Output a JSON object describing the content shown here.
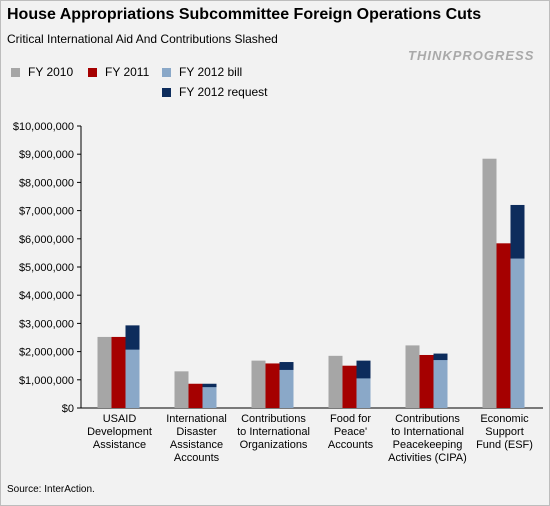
{
  "header": {
    "title": "House Appropriations Subcommittee Foreign Operations Cuts",
    "subtitle": "Critical International Aid And Contributions Slashed",
    "brand": "THINKPROGRESS"
  },
  "footer": {
    "source": "Source: InterAction."
  },
  "colors": {
    "fy2010": "#a6a6a6",
    "fy2011": "#a50000",
    "fy2012bill": "#8aa8c8",
    "fy2012request": "#0d2c5c"
  },
  "chart_data": {
    "type": "bar",
    "title": "House Appropriations Subcommittee Foreign Operations Cuts",
    "subtitle": "Critical International Aid And Contributions Slashed",
    "categories": [
      "USAID Development Assistance",
      "International Disaster Assistance Accounts",
      "Contributions to International Organizations",
      "Food for Peace' Accounts",
      "Contributions to International Peacekeeping Activities (CIPA)",
      "Economic Support Fund (ESF)"
    ],
    "category_lines": [
      [
        "USAID",
        "Development",
        "Assistance"
      ],
      [
        "International",
        "Disaster",
        "Assistance",
        "Accounts"
      ],
      [
        "Contributions",
        "to International",
        "Organizations"
      ],
      [
        "Food for",
        "Peace'",
        "Accounts"
      ],
      [
        "Contributions",
        "to International",
        "Peacekeeping",
        "Activities (CIPA)"
      ],
      [
        "Economic",
        "Support",
        "Fund (ESF)"
      ]
    ],
    "series": [
      {
        "name": "FY 2010",
        "values": [
          2520000,
          1300000,
          1680000,
          1850000,
          2220000,
          8840000
        ]
      },
      {
        "name": "FY 2011",
        "values": [
          2520000,
          860000,
          1580000,
          1500000,
          1880000,
          5840000
        ]
      },
      {
        "name": "FY 2012 bill",
        "values": [
          2070000,
          740000,
          1350000,
          1050000,
          1700000,
          5300000
        ]
      },
      {
        "name": "FY 2012 request",
        "values": [
          2930000,
          860000,
          1630000,
          1680000,
          1930000,
          7200000
        ]
      }
    ],
    "ylim": [
      0,
      10000000
    ],
    "yticks": [
      "$0",
      "$1,000,000",
      "$2,000,000",
      "$3,000,000",
      "$4,000,000",
      "$5,000,000",
      "$6,000,000",
      "$7,000,000",
      "$8,000,000",
      "$9,000,000",
      "$10,000,000"
    ],
    "ytick_step": 1000000,
    "stacked_overlay": "FY 2012 bill drawn on top of FY 2012 request in the same column",
    "legend": {
      "position": "top-left"
    },
    "grid": false,
    "xlabel": "",
    "ylabel": ""
  }
}
